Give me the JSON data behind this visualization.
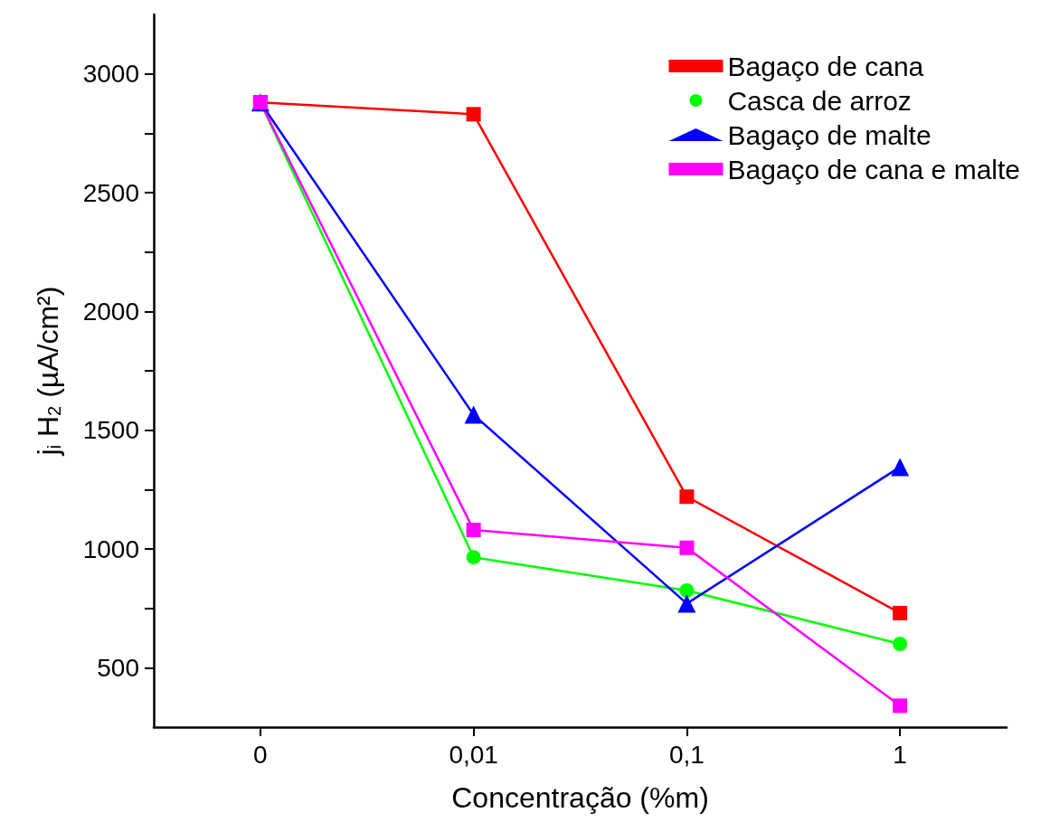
{
  "chart_data": {
    "type": "line",
    "xlabel": "Concentração (%m)",
    "ylabel": "j$_{i}$ H$_{2}$ (µA/cm²)",
    "categories": [
      "0",
      "0,01",
      "0,1",
      "1"
    ],
    "series": [
      {
        "name": "Bagaço de cana",
        "color": "#ff0000",
        "marker": "square",
        "values": [
          2880,
          2830,
          1220,
          730
        ]
      },
      {
        "name": "Casca de arroz",
        "color": "#00ff00",
        "marker": "circle",
        "values": [
          2880,
          965,
          825,
          600
        ]
      },
      {
        "name": "Bagaço de malte",
        "color": "#0000ff",
        "marker": "triangle",
        "values": [
          2880,
          1565,
          770,
          1345
        ]
      },
      {
        "name": "Bagaço de cana e malte",
        "color": "#ff00ff",
        "marker": "square",
        "values": [
          2880,
          1080,
          1005,
          340
        ]
      }
    ],
    "ylim": [
      250,
      3250
    ],
    "yticks": [
      500,
      {
        "value": 750,
        "label": null
      },
      1000,
      {
        "value": 1250,
        "label": null
      },
      1500,
      {
        "value": 1750,
        "label": null
      },
      2000,
      {
        "value": 2250,
        "label": null
      },
      2500,
      {
        "value": 2750,
        "label": null
      },
      3000
    ],
    "grid": false,
    "legend": "top right",
    "line_style": "solid"
  }
}
